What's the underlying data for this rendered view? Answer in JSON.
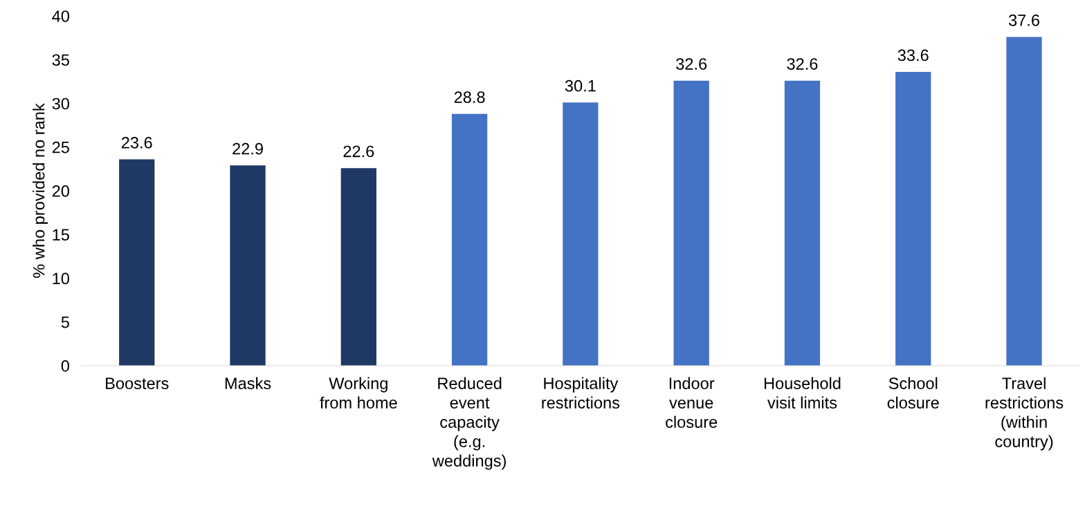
{
  "chart_data": {
    "type": "bar",
    "ylabel": "% who provided no rank",
    "categories": [
      "Boosters",
      "Masks",
      "Working\nfrom home",
      "Reduced\nevent\ncapacity\n(e.g.\nweddings)",
      "Hospitality\nrestrictions",
      "Indoor\nvenue\nclosure",
      "Household\nvisit limits",
      "School\nclosure",
      "Travel\nrestrictions\n(within\ncountry)"
    ],
    "values": [
      23.6,
      22.9,
      22.6,
      28.8,
      30.1,
      32.6,
      32.6,
      33.6,
      37.6
    ],
    "colors": [
      "#1f3864",
      "#1f3864",
      "#1f3864",
      "#4472c4",
      "#4472c4",
      "#4472c4",
      "#4472c4",
      "#4472c4",
      "#4472c4"
    ],
    "ylim": [
      0,
      40
    ],
    "yticks": [
      0,
      5,
      10,
      15,
      20,
      25,
      30,
      35,
      40
    ],
    "data_labels": true,
    "grid": false,
    "legend": false
  }
}
